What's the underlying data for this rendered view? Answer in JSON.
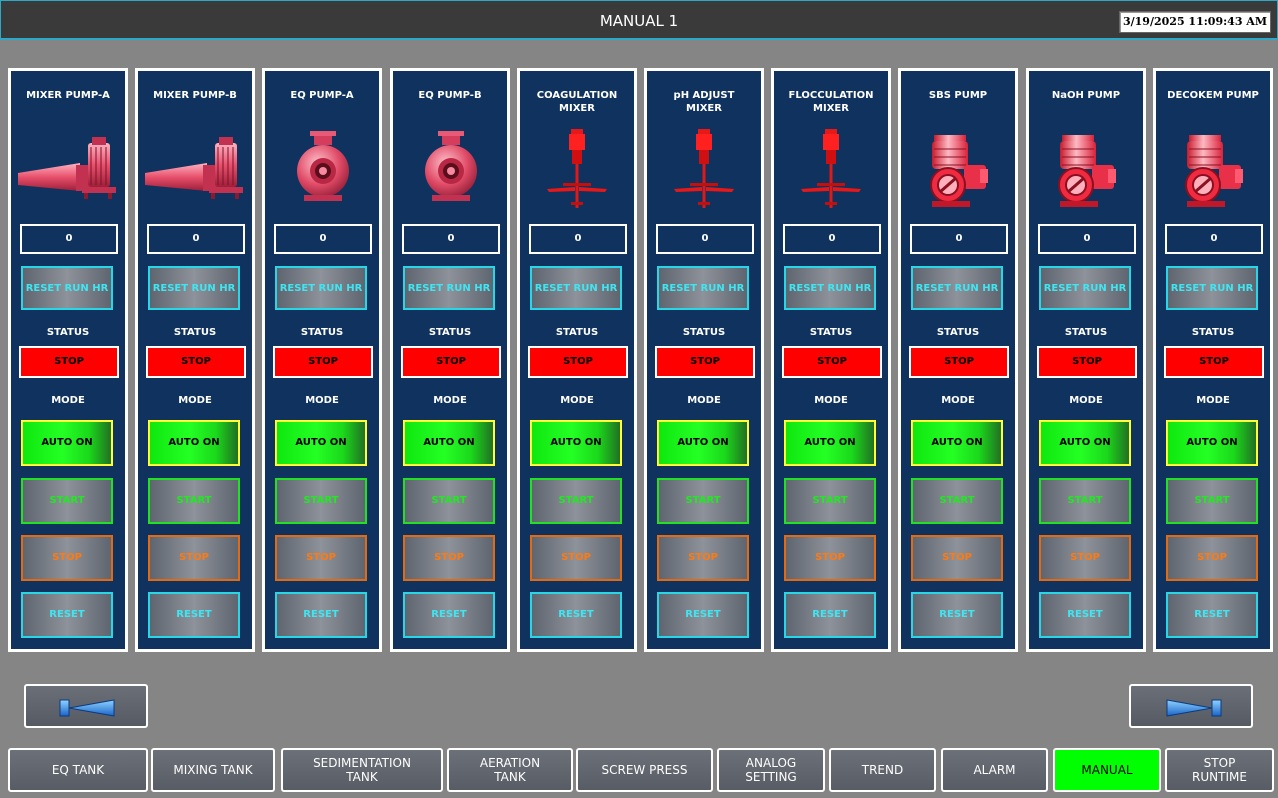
{
  "header": {
    "title": "MANUAL 1",
    "datetime": "3/19/2025 11:09:43 AM"
  },
  "labels": {
    "reset_run_hr": "RESET RUN HR",
    "status": "STATUS",
    "mode": "MODE",
    "auto_on": "AUTO ON",
    "start": "START",
    "stop": "STOP",
    "reset": "RESET"
  },
  "equipment": [
    {
      "name": "MIXER PUMP-A",
      "icon": "submersible-mixer-icon",
      "runtime": "0",
      "status": "STOP"
    },
    {
      "name": "MIXER PUMP-B",
      "icon": "submersible-mixer-icon",
      "runtime": "0",
      "status": "STOP"
    },
    {
      "name": "EQ PUMP-A",
      "icon": "centrifugal-pump-icon",
      "runtime": "0",
      "status": "STOP"
    },
    {
      "name": "EQ PUMP-B",
      "icon": "centrifugal-pump-icon",
      "runtime": "0",
      "status": "STOP"
    },
    {
      "name": "COAGULATION\nMIXER",
      "icon": "agitator-icon",
      "runtime": "0",
      "status": "STOP"
    },
    {
      "name": "pH ADJUST\nMIXER",
      "icon": "agitator-icon",
      "runtime": "0",
      "status": "STOP"
    },
    {
      "name": "FLOCCULATION\nMIXER",
      "icon": "agitator-icon",
      "runtime": "0",
      "status": "STOP"
    },
    {
      "name": "SBS PUMP",
      "icon": "dosing-pump-icon",
      "runtime": "0",
      "status": "STOP"
    },
    {
      "name": "NaOH PUMP",
      "icon": "dosing-pump-icon",
      "runtime": "0",
      "status": "STOP"
    },
    {
      "name": "DECOKEM PUMP",
      "icon": "dosing-pump-icon",
      "runtime": "0",
      "status": "STOP"
    }
  ],
  "nav": {
    "prev_icon": "arrow-left-icon",
    "next_icon": "arrow-right-icon"
  },
  "tabs": [
    {
      "label": "EQ TANK"
    },
    {
      "label": "MIXING TANK"
    },
    {
      "label": "SEDIMENTATION\nTANK"
    },
    {
      "label": "AERATION\nTANK"
    },
    {
      "label": "SCREW PRESS"
    },
    {
      "label": "ANALOG\nSETTING"
    },
    {
      "label": "TREND"
    },
    {
      "label": "ALARM"
    },
    {
      "label": "MANUAL",
      "active": true
    },
    {
      "label": "STOP\nRUNTIME"
    }
  ],
  "colors": {
    "panel_bg": "#10325e",
    "status_stop": "#ff0000",
    "auto_on": "#00ff00",
    "start": "#22e022",
    "stop": "#ff7a10",
    "reset": "#3ee6f2",
    "active_tab": "#00ff00"
  }
}
